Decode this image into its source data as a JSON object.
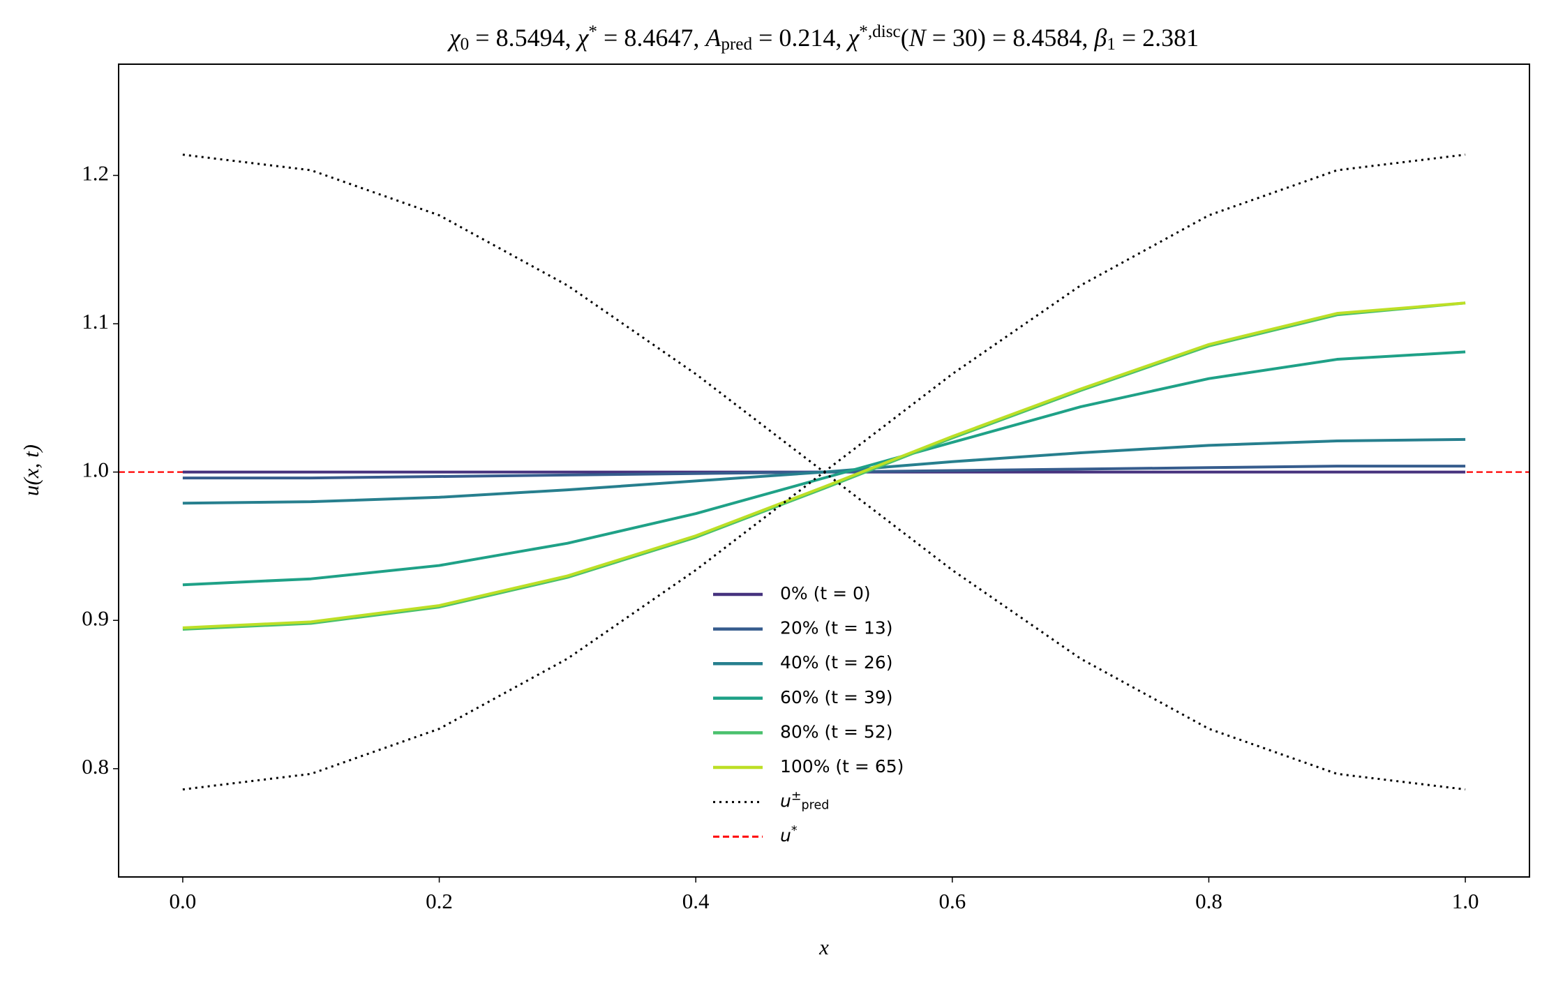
{
  "chart_data": {
    "type": "line",
    "title": [
      {
        "t": "χ",
        "i": true
      },
      {
        "t": "0",
        "s": "sub"
      },
      {
        "t": " = 8.5494,  "
      },
      {
        "t": "χ",
        "i": true
      },
      {
        "t": "*",
        "s": "sup"
      },
      {
        "t": " = 8.4647,  "
      },
      {
        "t": "A",
        "i": true
      },
      {
        "t": "pred",
        "s": "sub"
      },
      {
        "t": " = 0.214,  "
      },
      {
        "t": "χ",
        "i": true
      },
      {
        "t": "*,disc",
        "s": "sup"
      },
      {
        "t": "("
      },
      {
        "t": "N",
        "i": true
      },
      {
        "t": " = 30) = 8.4584,  "
      },
      {
        "t": "β",
        "i": true
      },
      {
        "t": "1",
        "s": "sub"
      },
      {
        "t": " = 2.381"
      }
    ],
    "x_label": "x",
    "y_label": "u(x, t)",
    "x": [
      0,
      0.1,
      0.2,
      0.3,
      0.4,
      0.5,
      0.6,
      0.7,
      0.8,
      0.9,
      1.0
    ],
    "series": [
      {
        "name": [
          {
            "t": "0% (t = 0)"
          }
        ],
        "color": "#46327e",
        "values": [
          1.0,
          1.0,
          1.0,
          1.0,
          1.0,
          1.0,
          1.0,
          1.0,
          1.0,
          1.0,
          1.0
        ]
      },
      {
        "name": [
          {
            "t": "20% (t = 13)"
          }
        ],
        "color": "#365c8d",
        "values": [
          0.996,
          0.996,
          0.997,
          0.998,
          0.999,
          1.0,
          1.001,
          1.002,
          1.003,
          1.004,
          1.004
        ]
      },
      {
        "name": [
          {
            "t": "40% (t = 26)"
          }
        ],
        "color": "#277f8e",
        "values": [
          0.979,
          0.98,
          0.983,
          0.988,
          0.994,
          1.0,
          1.007,
          1.013,
          1.018,
          1.021,
          1.022
        ]
      },
      {
        "name": [
          {
            "t": "60% (t = 39)"
          }
        ],
        "color": "#1fa187",
        "values": [
          0.924,
          0.928,
          0.937,
          0.952,
          0.972,
          0.996,
          1.02,
          1.044,
          1.063,
          1.076,
          1.081
        ]
      },
      {
        "name": [
          {
            "t": "80% (t = 52)"
          }
        ],
        "color": "#4ac16d",
        "values": [
          0.894,
          0.898,
          0.909,
          0.929,
          0.956,
          0.989,
          1.023,
          1.055,
          1.085,
          1.106,
          1.114
        ]
      },
      {
        "name": [
          {
            "t": "100% (t = 65)"
          }
        ],
        "color": "#bddf26",
        "values": [
          0.895,
          0.899,
          0.91,
          0.93,
          0.957,
          0.99,
          1.024,
          1.056,
          1.086,
          1.107,
          1.114
        ]
      },
      {
        "name": [
          {
            "t": "u",
            "i": true
          },
          {
            "t": "±",
            "s": "sup"
          },
          {
            "t": "pred",
            "s": "sub"
          }
        ],
        "color": "#000000",
        "dash": "dotted",
        "values": [
          1.214,
          1.2035,
          1.1731,
          1.1258,
          1.0661,
          1.0,
          0.9339,
          0.8742,
          0.8269,
          0.7965,
          0.786
        ],
        "lower": [
          0.786,
          0.7965,
          0.8269,
          0.8742,
          0.9339,
          1.0,
          1.0661,
          1.1258,
          1.1731,
          1.2035,
          1.214
        ]
      }
    ],
    "hline": {
      "name": [
        {
          "t": "u",
          "i": true
        },
        {
          "t": "*",
          "s": "sup"
        }
      ],
      "value": 1.0,
      "color": "#ff0000",
      "dash": "dashed"
    },
    "xlim": [
      -0.05,
      1.05
    ],
    "ylim": [
      0.727,
      1.275
    ],
    "xticks": [
      {
        "value": 0,
        "label": "0.0"
      },
      0.2,
      0.4,
      0.6,
      0.8,
      {
        "value": 1,
        "label": "1.0"
      }
    ],
    "yticks": [
      0.8,
      0.9,
      {
        "value": 1,
        "label": "1.0"
      },
      1.1,
      1.2
    ],
    "legend": "lower center"
  }
}
